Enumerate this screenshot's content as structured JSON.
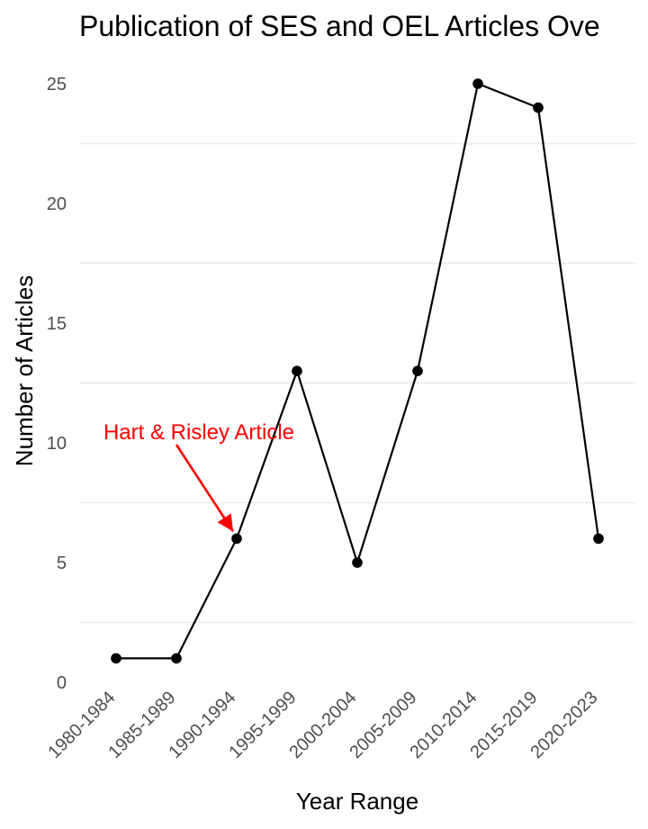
{
  "chart_data": {
    "type": "line",
    "title": "Publication of SES and OEL Articles Ove",
    "xlabel": "Year Range",
    "ylabel": "Number of Articles",
    "categories": [
      "1980-1984",
      "1985-1989",
      "1990-1994",
      "1995-1999",
      "2000-2004",
      "2005-2009",
      "2010-2014",
      "2015-2019",
      "2020-2023"
    ],
    "values": [
      1,
      1,
      6,
      13,
      5,
      13,
      25,
      24,
      6
    ],
    "ylim": [
      0,
      25
    ],
    "yticks": [
      0,
      5,
      10,
      15,
      20,
      25
    ],
    "grid": true,
    "annotation": {
      "text": "Hart & Risley Article",
      "category": "1990-1994",
      "color": "#ff0000"
    },
    "colors": {
      "line": "#000000",
      "point": "#000000",
      "grid": "#ebebeb",
      "tick_text": "#4d4d4d"
    }
  }
}
